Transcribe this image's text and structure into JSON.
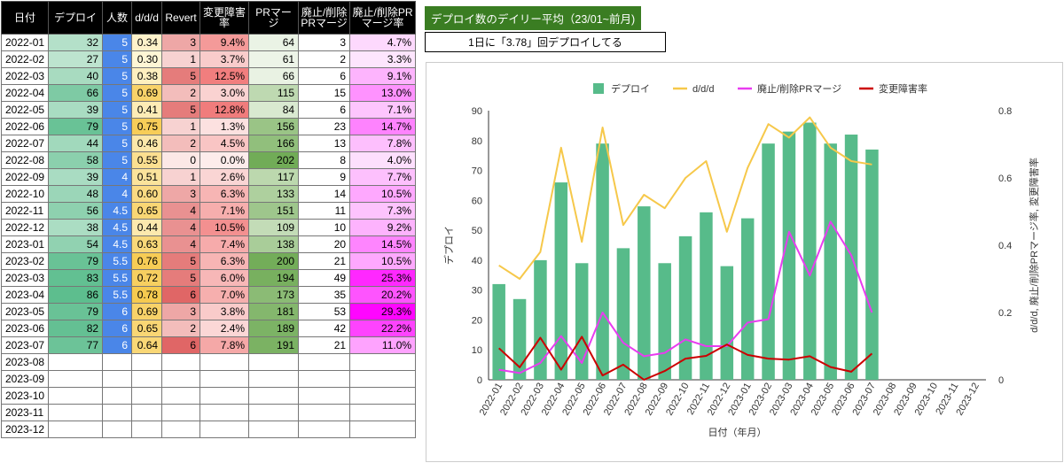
{
  "table": {
    "headers": [
      "日付",
      "デプロイ",
      "人数",
      "d/d/d",
      "Revert",
      "変更障害率",
      "PRマージ",
      "廃止/削除PRマージ",
      "廃止/削除PRマージ率"
    ],
    "rows": [
      [
        "2022-01",
        "32",
        "5",
        "0.34",
        "3",
        "9.4%",
        "64",
        "3",
        "4.7%"
      ],
      [
        "2022-02",
        "27",
        "5",
        "0.30",
        "1",
        "3.7%",
        "61",
        "2",
        "3.3%"
      ],
      [
        "2022-03",
        "40",
        "5",
        "0.38",
        "5",
        "12.5%",
        "66",
        "6",
        "9.1%"
      ],
      [
        "2022-04",
        "66",
        "5",
        "0.69",
        "2",
        "3.0%",
        "115",
        "15",
        "13.0%"
      ],
      [
        "2022-05",
        "39",
        "5",
        "0.41",
        "5",
        "12.8%",
        "84",
        "6",
        "7.1%"
      ],
      [
        "2022-06",
        "79",
        "5",
        "0.75",
        "1",
        "1.3%",
        "156",
        "23",
        "14.7%"
      ],
      [
        "2022-07",
        "44",
        "5",
        "0.46",
        "2",
        "4.5%",
        "166",
        "13",
        "7.8%"
      ],
      [
        "2022-08",
        "58",
        "5",
        "0.55",
        "0",
        "0.0%",
        "202",
        "8",
        "4.0%"
      ],
      [
        "2022-09",
        "39",
        "4",
        "0.51",
        "1",
        "2.6%",
        "117",
        "9",
        "7.7%"
      ],
      [
        "2022-10",
        "48",
        "4",
        "0.60",
        "3",
        "6.3%",
        "133",
        "14",
        "10.5%"
      ],
      [
        "2022-11",
        "56",
        "4.5",
        "0.65",
        "4",
        "7.1%",
        "151",
        "11",
        "7.3%"
      ],
      [
        "2022-12",
        "38",
        "4.5",
        "0.44",
        "4",
        "10.5%",
        "109",
        "10",
        "9.2%"
      ],
      [
        "2023-01",
        "54",
        "4.5",
        "0.63",
        "4",
        "7.4%",
        "138",
        "20",
        "14.5%"
      ],
      [
        "2023-02",
        "79",
        "5.5",
        "0.76",
        "5",
        "6.3%",
        "200",
        "21",
        "10.5%"
      ],
      [
        "2023-03",
        "83",
        "5.5",
        "0.72",
        "5",
        "6.0%",
        "194",
        "49",
        "25.3%"
      ],
      [
        "2023-04",
        "86",
        "5.5",
        "0.78",
        "6",
        "7.0%",
        "173",
        "35",
        "20.2%"
      ],
      [
        "2023-05",
        "79",
        "6",
        "0.69",
        "3",
        "3.8%",
        "181",
        "53",
        "29.3%"
      ],
      [
        "2023-06",
        "82",
        "6",
        "0.65",
        "2",
        "2.4%",
        "189",
        "42",
        "22.2%"
      ],
      [
        "2023-07",
        "77",
        "6",
        "0.64",
        "6",
        "7.8%",
        "191",
        "21",
        "11.0%"
      ],
      [
        "2023-08",
        "",
        "",
        "",
        "",
        "",
        "",
        "",
        ""
      ],
      [
        "2023-09",
        "",
        "",
        "",
        "",
        "",
        "",
        "",
        ""
      ],
      [
        "2023-10",
        "",
        "",
        "",
        "",
        "",
        "",
        "",
        ""
      ],
      [
        "2023-11",
        "",
        "",
        "",
        "",
        "",
        "",
        "",
        ""
      ],
      [
        "2023-12",
        "",
        "",
        "",
        "",
        "",
        "",
        "",
        ""
      ]
    ]
  },
  "colors": {
    "header_bg": "#000000",
    "deploy_scale": [
      "#e8f5ec",
      "#57bb8a"
    ],
    "people": "#4a86e8",
    "ddd_scale": [
      "#fff6d5",
      "#f6c84a"
    ],
    "revert_scale": [
      "#fce8e6",
      "#e06666"
    ],
    "failrate_scale": [
      "#fdeceb",
      "#f07a7a"
    ],
    "pr_scale": [
      "#eef5e9",
      "#6aa84f"
    ],
    "del_rate_scale": [
      "#fde8fd",
      "#ff00ff"
    ],
    "title_bg": "#3a7d22",
    "bar": "#57bb8a",
    "ddd_line": "#f6c84a",
    "del_line": "#e83cf0",
    "fail_line": "#cc0000"
  },
  "panel": {
    "title": "デプロイ数のデイリー平均（23/01~前月)",
    "subtitle": "1日に「3.78」回デプロイしてる"
  },
  "chart_data": {
    "type": "bar",
    "categories": [
      "2022-01",
      "2022-02",
      "2022-03",
      "2022-04",
      "2022-05",
      "2022-06",
      "2022-07",
      "2022-08",
      "2022-09",
      "2022-10",
      "2022-11",
      "2022-12",
      "2023-01",
      "2023-02",
      "2023-03",
      "2023-04",
      "2023-05",
      "2023-06",
      "2023-07",
      "2023-08",
      "2023-09",
      "2023-10",
      "2023-11",
      "2023-12"
    ],
    "series": [
      {
        "name": "デプロイ",
        "type": "bar",
        "axis": "left",
        "values": [
          32,
          27,
          40,
          66,
          39,
          79,
          44,
          58,
          39,
          48,
          56,
          38,
          54,
          79,
          83,
          86,
          79,
          82,
          77,
          null,
          null,
          null,
          null,
          null
        ]
      },
      {
        "name": "d/d/d",
        "type": "line",
        "axis": "right",
        "values": [
          0.34,
          0.3,
          0.38,
          0.69,
          0.41,
          0.75,
          0.46,
          0.55,
          0.51,
          0.6,
          0.65,
          0.44,
          0.63,
          0.76,
          0.72,
          0.78,
          0.69,
          0.65,
          0.64,
          null,
          null,
          null,
          null,
          null
        ]
      },
      {
        "name": "廃止/削除PRマージ",
        "type": "line",
        "axis": "right",
        "values": [
          0.03,
          0.02,
          0.05,
          0.13,
          0.05,
          0.2,
          0.11,
          0.07,
          0.08,
          0.12,
          0.1,
          0.1,
          0.17,
          0.18,
          0.44,
          0.31,
          0.47,
          0.37,
          0.2,
          null,
          null,
          null,
          null,
          null
        ]
      },
      {
        "name": "変更障害率",
        "type": "line",
        "axis": "right",
        "values": [
          0.094,
          0.037,
          0.125,
          0.03,
          0.128,
          0.013,
          0.045,
          0.0,
          0.026,
          0.063,
          0.071,
          0.105,
          0.074,
          0.063,
          0.06,
          0.07,
          0.038,
          0.024,
          0.078,
          null,
          null,
          null,
          null,
          null
        ]
      }
    ],
    "xlabel": "日付（年月）",
    "ylabel": "デプロイ",
    "y2label": "d/d/d, 廃止/削除PRマージ率, 変更障害率",
    "ylim": [
      0,
      90
    ],
    "yticks": [
      "0",
      "10",
      "20",
      "30",
      "40",
      "50",
      "60",
      "70",
      "80",
      "90"
    ],
    "y2lim": [
      0,
      0.8
    ],
    "y2ticks": [
      "0",
      "0.2",
      "0.4",
      "0.6",
      "0.8"
    ],
    "legend": "top",
    "grid": false
  }
}
